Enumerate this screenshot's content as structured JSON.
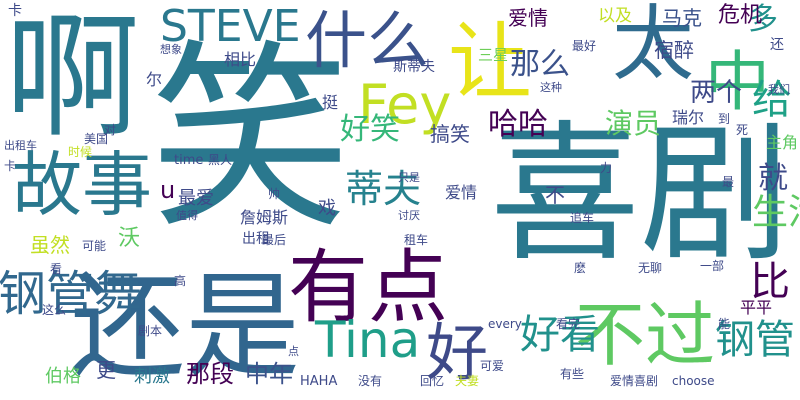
{
  "words": [
    {
      "text": "笑",
      "color": "#2a788e"
    },
    {
      "text": "喜剧",
      "color": "#2a788e"
    },
    {
      "text": "啊",
      "color": "#2a788e"
    },
    {
      "text": "还是",
      "color": "#31668e"
    },
    {
      "text": "太",
      "color": "#2f6b8e"
    },
    {
      "text": "让",
      "color": "#e8e419"
    },
    {
      "text": "故事",
      "color": "#2a788e"
    },
    {
      "text": "有点",
      "color": "#440154"
    },
    {
      "text": "中",
      "color": "#35b779"
    },
    {
      "text": "什么",
      "color": "#3b528b"
    },
    {
      "text": "STEVE",
      "color": "#2a788e"
    },
    {
      "text": "Fey",
      "color": "#c2df23"
    },
    {
      "text": "Tina",
      "color": "#1f9e89"
    },
    {
      "text": "好",
      "color": "#3e4a89"
    },
    {
      "text": "不过",
      "color": "#5ec962"
    },
    {
      "text": "钢管舞",
      "color": "#31688e"
    },
    {
      "text": "钢管",
      "color": "#21918c"
    },
    {
      "text": "好看",
      "color": "#21918c"
    },
    {
      "text": "蒂夫",
      "color": "#26828e"
    },
    {
      "text": "那么",
      "color": "#3b528b"
    },
    {
      "text": "给",
      "color": "#1fa187"
    },
    {
      "text": "多",
      "color": "#21918c"
    },
    {
      "text": "好笑",
      "color": "#35b779"
    },
    {
      "text": "哈哈",
      "color": "#440154"
    },
    {
      "text": "演员",
      "color": "#5ec962"
    },
    {
      "text": "比",
      "color": "#440154"
    },
    {
      "text": "生活",
      "color": "#5ec962"
    },
    {
      "text": "就",
      "color": "#3e4a89"
    },
    {
      "text": "爱情",
      "color": "#440154"
    },
    {
      "text": "危机",
      "color": "#440154"
    },
    {
      "text": "马克",
      "color": "#3b528b"
    },
    {
      "text": "以及",
      "color": "#c2df23"
    },
    {
      "text": "三星",
      "color": "#6ece58"
    },
    {
      "text": "搞笑",
      "color": "#3e4a89"
    },
    {
      "text": "宿醉",
      "color": "#3e4a89"
    },
    {
      "text": "两个",
      "color": "#3e4a89"
    },
    {
      "text": "瑞尔",
      "color": "#3e4a89"
    },
    {
      "text": "主角",
      "color": "#5ec962"
    },
    {
      "text": "平平",
      "color": "#440154"
    },
    {
      "text": "中年",
      "color": "#3b528b"
    },
    {
      "text": "那段",
      "color": "#440154"
    },
    {
      "text": "刺激",
      "color": "#2a788e"
    },
    {
      "text": "更",
      "color": "#3e4a89"
    },
    {
      "text": "伯格",
      "color": "#5ec962"
    },
    {
      "text": "詹姆斯",
      "color": "#3e4a89"
    },
    {
      "text": "相比",
      "color": "#3e4a89"
    },
    {
      "text": "爱情",
      "color": "#3e4a89"
    },
    {
      "text": "虽然",
      "color": "#c2df23"
    },
    {
      "text": "沃",
      "color": "#5ec962"
    },
    {
      "text": "最爱",
      "color": "#3e4a89"
    },
    {
      "text": "戏",
      "color": "#3e4a89"
    },
    {
      "text": "u",
      "color": "#440154"
    },
    {
      "text": "不",
      "color": "#3e4a89"
    },
    {
      "text": "尔",
      "color": "#3e4a89"
    },
    {
      "text": "挺",
      "color": "#3e4a89"
    },
    {
      "text": "出租",
      "color": "#3e4a89"
    },
    {
      "text": "斯蒂夫",
      "color": "#3e4a89"
    },
    {
      "text": "还",
      "color": "#3e4a89"
    },
    {
      "text": "卡",
      "color": "#3e4a89"
    },
    {
      "text": "想象",
      "color": "#3e4a89"
    },
    {
      "text": "最好",
      "color": "#3e4a89"
    },
    {
      "text": "我们",
      "color": "#3e4a89"
    },
    {
      "text": "这种",
      "color": "#3e4a89"
    },
    {
      "text": "死",
      "color": "#3e4a89"
    },
    {
      "text": "到",
      "color": "#3e4a89"
    },
    {
      "text": "对",
      "color": "#3e4a89"
    },
    {
      "text": "出租车",
      "color": "#3e4a89"
    },
    {
      "text": "美国",
      "color": "#3e4a89"
    },
    {
      "text": "时候",
      "color": "#c2df23"
    },
    {
      "text": "time",
      "color": "#3e4a89"
    },
    {
      "text": "黑人",
      "color": "#3e4a89"
    },
    {
      "text": "卡",
      "color": "#3e4a89"
    },
    {
      "text": "力",
      "color": "#3e4a89"
    },
    {
      "text": "最",
      "color": "#3e4a89"
    },
    {
      "text": "帅",
      "color": "#3e4a89"
    },
    {
      "text": "值得",
      "color": "#3e4a89"
    },
    {
      "text": "只是",
      "color": "#3e4a89"
    },
    {
      "text": "追车",
      "color": "#3e4a89"
    },
    {
      "text": "讨厌",
      "color": "#3e4a89"
    },
    {
      "text": "可能",
      "color": "#3e4a89"
    },
    {
      "text": "最后",
      "color": "#3e4a89"
    },
    {
      "text": "租车",
      "color": "#3e4a89"
    },
    {
      "text": "麽",
      "color": "#3e4a89"
    },
    {
      "text": "无聊",
      "color": "#3e4a89"
    },
    {
      "text": "一部",
      "color": "#3e4a89"
    },
    {
      "text": "高",
      "color": "#3e4a89"
    },
    {
      "text": "看",
      "color": "#3e4a89"
    },
    {
      "text": "这么",
      "color": "#3e4a89"
    },
    {
      "text": "剧本",
      "color": "#3e4a89"
    },
    {
      "text": "every",
      "color": "#3e4a89"
    },
    {
      "text": "能",
      "color": "#3e4a89"
    },
    {
      "text": "看完",
      "color": "#3e4a89"
    },
    {
      "text": "点",
      "color": "#3e4a89"
    },
    {
      "text": "可爱",
      "color": "#3e4a89"
    },
    {
      "text": "有些",
      "color": "#3e4a89"
    },
    {
      "text": "HAHA",
      "color": "#3e4a89"
    },
    {
      "text": "没有",
      "color": "#3e4a89"
    },
    {
      "text": "回忆",
      "color": "#3e4a89"
    },
    {
      "text": "夫妻",
      "color": "#c2df23"
    },
    {
      "text": "爱情喜剧",
      "color": "#3e4a89"
    },
    {
      "text": "choose",
      "color": "#3e4a89"
    }
  ]
}
